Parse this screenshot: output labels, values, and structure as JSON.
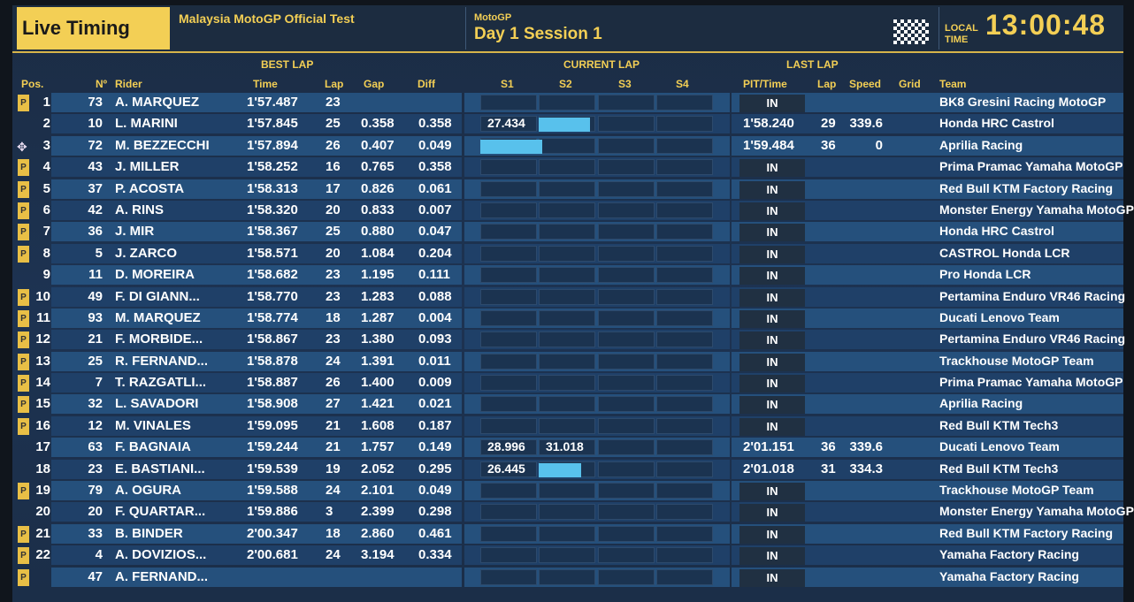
{
  "header": {
    "logo": "Live Timing",
    "event": "Malaysia MotoGP Official Test",
    "category": "MotoGP",
    "session": "Day 1 Session 1",
    "local_1": "LOCAL",
    "local_2": "TIME",
    "clock": "13:00:48"
  },
  "groups": {
    "best": "BEST LAP",
    "current": "CURRENT LAP",
    "last": "LAST LAP"
  },
  "columns": {
    "pos": "Pos.",
    "num": "Nº",
    "rider": "Rider",
    "time": "Time",
    "lap": "Lap",
    "gap": "Gap",
    "diff": "Diff",
    "s1": "S1",
    "s2": "S2",
    "s3": "S3",
    "s4": "S4",
    "pit": "PIT/Time",
    "llap": "Lap",
    "speed": "Speed",
    "grid": "Grid",
    "team": "Team"
  },
  "rows": [
    {
      "pos": "1",
      "num": "73",
      "rider": "A. MARQUEZ",
      "time": "1'57.487",
      "lap": "23",
      "gap": "",
      "diff": "",
      "pit_flag": "P",
      "pit": "IN",
      "ltime": "",
      "llap": "",
      "speed": "",
      "team": "BK8 Gresini Racing MotoGP"
    },
    {
      "pos": "2",
      "num": "10",
      "rider": "L. MARINI",
      "time": "1'57.845",
      "lap": "25",
      "gap": "0.358",
      "diff": "0.358",
      "s1": "27.434",
      "bar": {
        "start": 1,
        "fill": 0.9
      },
      "ltime": "1'58.240",
      "llap": "29",
      "speed": "339.6",
      "team": "Honda HRC Castrol"
    },
    {
      "pos": "3",
      "num": "72",
      "rider": "M. BEZZECCHI",
      "time": "1'57.894",
      "lap": "26",
      "gap": "0.407",
      "diff": "0.049",
      "icon": "chequered-icon",
      "bar": {
        "start": 0,
        "fill": 1.1
      },
      "ltime": "1'59.484",
      "llap": "36",
      "speed": "0",
      "team": "Aprilia Racing"
    },
    {
      "pos": "4",
      "num": "43",
      "rider": "J. MILLER",
      "time": "1'58.252",
      "lap": "16",
      "gap": "0.765",
      "diff": "0.358",
      "pit_flag": "P",
      "pit": "IN",
      "team": "Prima Pramac Yamaha MotoGP"
    },
    {
      "pos": "5",
      "num": "37",
      "rider": "P. ACOSTA",
      "time": "1'58.313",
      "lap": "17",
      "gap": "0.826",
      "diff": "0.061",
      "pit_flag": "P",
      "pit": "IN",
      "team": "Red Bull KTM Factory Racing"
    },
    {
      "pos": "6",
      "num": "42",
      "rider": "A. RINS",
      "time": "1'58.320",
      "lap": "20",
      "gap": "0.833",
      "diff": "0.007",
      "pit_flag": "P",
      "pit": "IN",
      "team": "Monster Energy Yamaha MotoGP"
    },
    {
      "pos": "7",
      "num": "36",
      "rider": "J. MIR",
      "time": "1'58.367",
      "lap": "25",
      "gap": "0.880",
      "diff": "0.047",
      "pit_flag": "P",
      "pit": "IN",
      "team": "Honda HRC Castrol"
    },
    {
      "pos": "8",
      "num": "5",
      "rider": "J. ZARCO",
      "time": "1'58.571",
      "lap": "20",
      "gap": "1.084",
      "diff": "0.204",
      "pit_flag": "P",
      "pit": "IN",
      "team": "CASTROL Honda LCR"
    },
    {
      "pos": "9",
      "num": "11",
      "rider": "D. MOREIRA",
      "time": "1'58.682",
      "lap": "23",
      "gap": "1.195",
      "diff": "0.111",
      "pit": "IN",
      "team": "Pro Honda LCR"
    },
    {
      "pos": "10",
      "num": "49",
      "rider": "F. DI GIANN...",
      "time": "1'58.770",
      "lap": "23",
      "gap": "1.283",
      "diff": "0.088",
      "pit_flag": "P",
      "pit": "IN",
      "team": "Pertamina Enduro VR46 Racing"
    },
    {
      "pos": "11",
      "num": "93",
      "rider": "M. MARQUEZ",
      "time": "1'58.774",
      "lap": "18",
      "gap": "1.287",
      "diff": "0.004",
      "pit_flag": "P",
      "pit": "IN",
      "team": "Ducati Lenovo Team"
    },
    {
      "pos": "12",
      "num": "21",
      "rider": "F. MORBIDE...",
      "time": "1'58.867",
      "lap": "23",
      "gap": "1.380",
      "diff": "0.093",
      "pit_flag": "P",
      "pit": "IN",
      "team": "Pertamina Enduro VR46 Racing"
    },
    {
      "pos": "13",
      "num": "25",
      "rider": "R. FERNAND...",
      "time": "1'58.878",
      "lap": "24",
      "gap": "1.391",
      "diff": "0.011",
      "pit_flag": "P",
      "pit": "IN",
      "team": "Trackhouse MotoGP Team"
    },
    {
      "pos": "14",
      "num": "7",
      "rider": "T. RAZGATLI...",
      "time": "1'58.887",
      "lap": "26",
      "gap": "1.400",
      "diff": "0.009",
      "pit_flag": "P",
      "pit": "IN",
      "team": "Prima Pramac Yamaha MotoGP"
    },
    {
      "pos": "15",
      "num": "32",
      "rider": "L. SAVADORI",
      "time": "1'58.908",
      "lap": "27",
      "gap": "1.421",
      "diff": "0.021",
      "pit_flag": "P",
      "pit": "IN",
      "team": "Aprilia Racing"
    },
    {
      "pos": "16",
      "num": "12",
      "rider": "M. VINALES",
      "time": "1'59.095",
      "lap": "21",
      "gap": "1.608",
      "diff": "0.187",
      "pit_flag": "P",
      "pit": "IN",
      "team": "Red Bull KTM Tech3"
    },
    {
      "pos": "17",
      "num": "63",
      "rider": "F. BAGNAIA",
      "time": "1'59.244",
      "lap": "21",
      "gap": "1.757",
      "diff": "0.149",
      "s1": "28.996",
      "s2": "31.018",
      "ltime": "2'01.151",
      "llap": "36",
      "speed": "339.6",
      "team": "Ducati Lenovo Team"
    },
    {
      "pos": "18",
      "num": "23",
      "rider": "E. BASTIANI...",
      "time": "1'59.539",
      "lap": "19",
      "gap": "2.052",
      "diff": "0.295",
      "s1": "26.445",
      "bar": {
        "start": 1,
        "fill": 0.75
      },
      "ltime": "2'01.018",
      "llap": "31",
      "speed": "334.3",
      "team": "Red Bull KTM Tech3"
    },
    {
      "pos": "19",
      "num": "79",
      "rider": "A. OGURA",
      "time": "1'59.588",
      "lap": "24",
      "gap": "2.101",
      "diff": "0.049",
      "pit_flag": "P",
      "pit": "IN",
      "team": "Trackhouse MotoGP Team"
    },
    {
      "pos": "20",
      "num": "20",
      "rider": "F. QUARTAR...",
      "time": "1'59.886",
      "lap": "3",
      "gap": "2.399",
      "diff": "0.298",
      "pit": "IN",
      "team": "Monster Energy Yamaha MotoGP"
    },
    {
      "pos": "21",
      "num": "33",
      "rider": "B. BINDER",
      "time": "2'00.347",
      "lap": "18",
      "gap": "2.860",
      "diff": "0.461",
      "pit_flag": "P",
      "pit": "IN",
      "team": "Red Bull KTM Factory Racing"
    },
    {
      "pos": "22",
      "num": "4",
      "rider": "A. DOVIZIOS...",
      "time": "2'00.681",
      "lap": "24",
      "gap": "3.194",
      "diff": "0.334",
      "pit_flag": "P",
      "pit": "IN",
      "team": "Yamaha Factory Racing"
    },
    {
      "pos": "",
      "num": "47",
      "rider": "A. FERNAND...",
      "time": "",
      "lap": "",
      "gap": "",
      "diff": "",
      "pit_flag": "P",
      "pit": "IN",
      "team": "Yamaha Factory Racing"
    }
  ]
}
